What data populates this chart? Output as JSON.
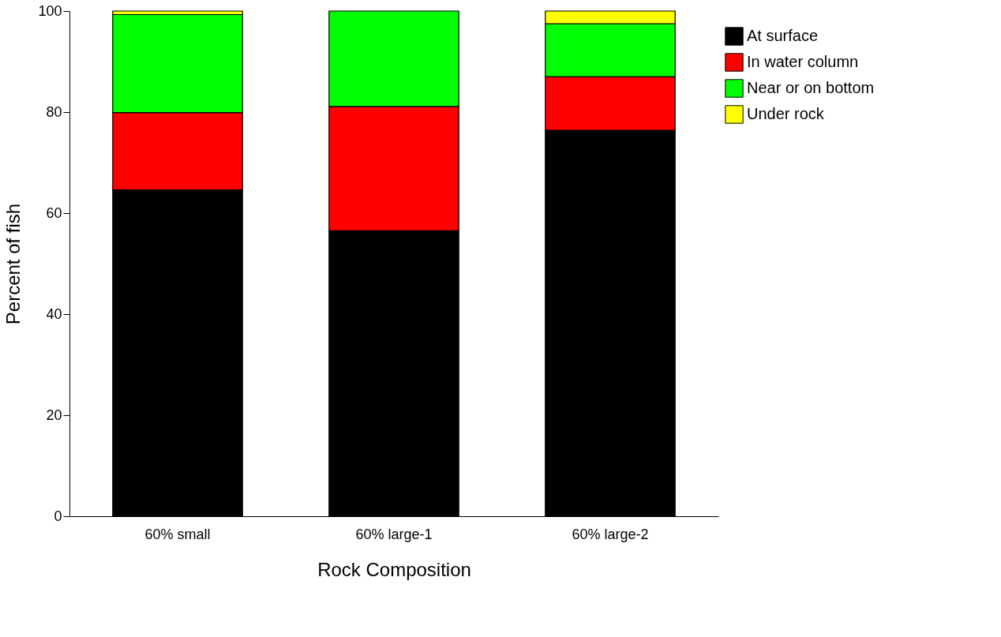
{
  "chart_data": {
    "type": "bar",
    "stacked": true,
    "xlabel": "Rock Composition",
    "ylabel": "Percent of fish",
    "categories": [
      "60% small",
      "60% large-1",
      "60% large-2"
    ],
    "series": [
      {
        "name": "At surface",
        "color": "#000000",
        "values": [
          64.6,
          56.5,
          76.4
        ]
      },
      {
        "name": "In water column",
        "color": "#ff0000",
        "values": [
          15.3,
          24.6,
          10.6
        ]
      },
      {
        "name": "Near or on bottom",
        "color": "#00ff00",
        "values": [
          19.4,
          18.9,
          10.5
        ]
      },
      {
        "name": "Under rock",
        "color": "#ffff00",
        "values": [
          0.7,
          null,
          2.5
        ]
      }
    ],
    "ylim": [
      0,
      100
    ],
    "yticks": [
      0,
      20,
      40,
      60,
      80,
      100
    ],
    "grid": false,
    "legend": "top right"
  }
}
